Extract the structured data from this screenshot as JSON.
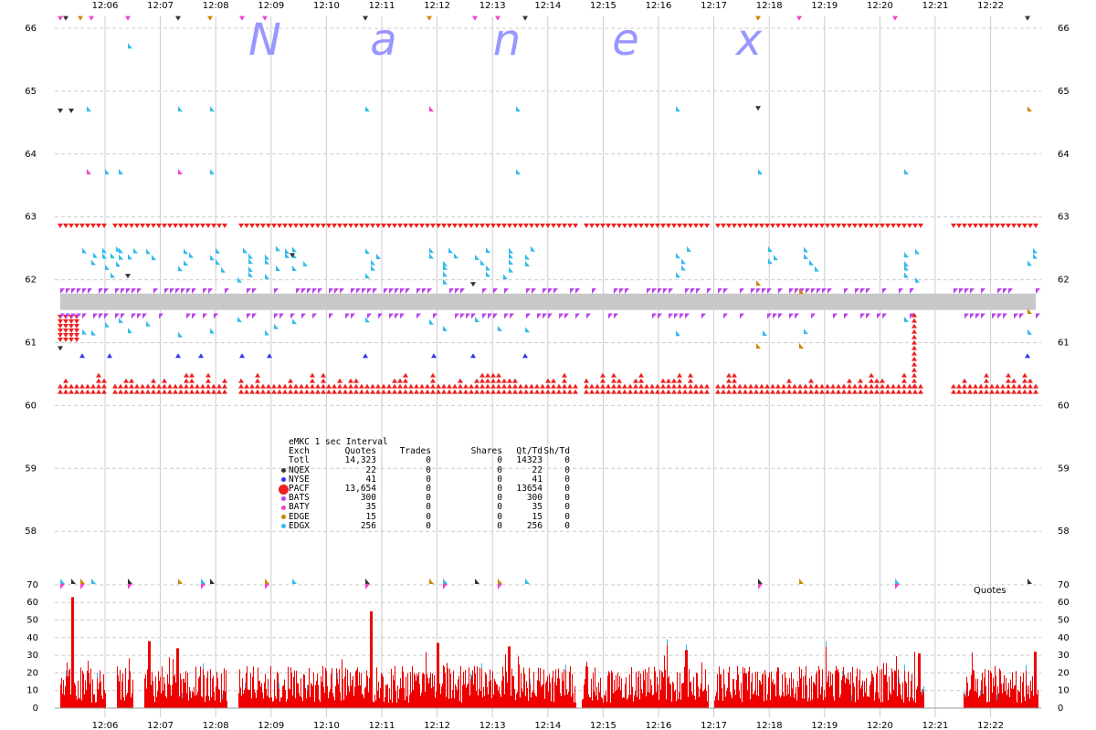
{
  "chart_data": [
    {
      "type": "scatter",
      "title": "",
      "watermark": "Nanex",
      "x_ticks": [
        "12:06",
        "12:07",
        "12:08",
        "12:09",
        "12:10",
        "12:11",
        "12:12",
        "12:13",
        "12:14",
        "12:15",
        "12:16",
        "12:17",
        "12:18",
        "12:19",
        "12:20",
        "12:21",
        "12:22"
      ],
      "y_ticks": [
        66,
        65,
        64,
        63,
        62,
        61,
        60,
        59,
        58
      ],
      "ylim": [
        57.5,
        66.2
      ],
      "grid": true,
      "nbbo_band": [
        61.52,
        61.78
      ],
      "pacf_ask": 62.85,
      "pacf_bid": 60.2,
      "pacf_gaps": [
        [
          "12:06.0",
          "12:06.1"
        ],
        [
          "12:08.2",
          "12:08.4"
        ],
        [
          "12:14.5",
          "12:14.6"
        ],
        [
          "12:16.9",
          "12:17.0"
        ],
        [
          "12:20.8",
          "12:21.3"
        ]
      ],
      "series_colors": {
        "NQEX": "#333333",
        "NYSE": "#3333ee",
        "PACF": "#ee2222",
        "BATS": "#bb44ee",
        "BATY": "#ee44cc",
        "EDGE": "#cc8800",
        "EDGX": "#33bbee"
      },
      "legend": {
        "title": "eMKC 1 sec Interval",
        "headers": [
          "Exch",
          "Quotes",
          "Trades",
          "Shares",
          "Qt/Td",
          "Sh/Td"
        ],
        "rows": [
          {
            "exch": "Totl",
            "quotes": "14,323",
            "trades": "0",
            "shares": "0",
            "qttd": "14323",
            "shtd": "0",
            "color": ""
          },
          {
            "exch": "NQEX",
            "quotes": "22",
            "trades": "0",
            "shares": "0",
            "qttd": "22",
            "shtd": "0",
            "color": "#333333"
          },
          {
            "exch": "NYSE",
            "quotes": "41",
            "trades": "0",
            "shares": "0",
            "qttd": "41",
            "shtd": "0",
            "color": "#3333ee"
          },
          {
            "exch": "PACF",
            "quotes": "13,654",
            "trades": "0",
            "shares": "0",
            "qttd": "13654",
            "shtd": "0",
            "color": "#ee2222"
          },
          {
            "exch": "BATS",
            "quotes": "300",
            "trades": "0",
            "shares": "0",
            "qttd": "300",
            "shtd": "0",
            "color": "#bb44ee"
          },
          {
            "exch": "BATY",
            "quotes": "35",
            "trades": "0",
            "shares": "0",
            "qttd": "35",
            "shtd": "0",
            "color": "#ee44cc"
          },
          {
            "exch": "EDGE",
            "quotes": "15",
            "trades": "0",
            "shares": "0",
            "qttd": "15",
            "shtd": "0",
            "color": "#cc8800"
          },
          {
            "exch": "EDGX",
            "quotes": "256",
            "trades": "0",
            "shares": "0",
            "qttd": "256",
            "shtd": "0",
            "color": "#33bbee"
          }
        ]
      }
    },
    {
      "type": "bar",
      "label": "Quotes",
      "y_ticks": [
        70,
        60,
        50,
        40,
        30,
        20,
        10,
        0
      ],
      "ylim": [
        0,
        70
      ],
      "x_ticks": [
        "12:06",
        "12:07",
        "12:08",
        "12:09",
        "12:10",
        "12:11",
        "12:12",
        "12:13",
        "12:14",
        "12:15",
        "12:16",
        "12:17",
        "12:18",
        "12:19",
        "12:20",
        "12:21",
        "12:22"
      ],
      "active_ranges": [
        [
          "12:05.1",
          "12:06.0"
        ],
        [
          "12:06.2",
          "12:06.5"
        ],
        [
          "12:06.7",
          "12:08.2"
        ],
        [
          "12:08.4",
          "12:14.5"
        ],
        [
          "12:14.6",
          "12:16.9"
        ],
        [
          "12:17.0",
          "12:20.8"
        ],
        [
          "12:21.5",
          "12:23.0"
        ]
      ],
      "typical_quotes_per_sec": 15,
      "peaks": [
        {
          "x": "12:05.4",
          "y": 63
        },
        {
          "x": "12:06.8",
          "y": 38
        },
        {
          "x": "12:07.3",
          "y": 34
        },
        {
          "x": "12:10.8",
          "y": 55
        },
        {
          "x": "12:12.0",
          "y": 37
        },
        {
          "x": "12:13.3",
          "y": 35
        },
        {
          "x": "12:16.5",
          "y": 33
        },
        {
          "x": "12:20.7",
          "y": 31
        },
        {
          "x": "12:22.8",
          "y": 32
        }
      ]
    }
  ]
}
